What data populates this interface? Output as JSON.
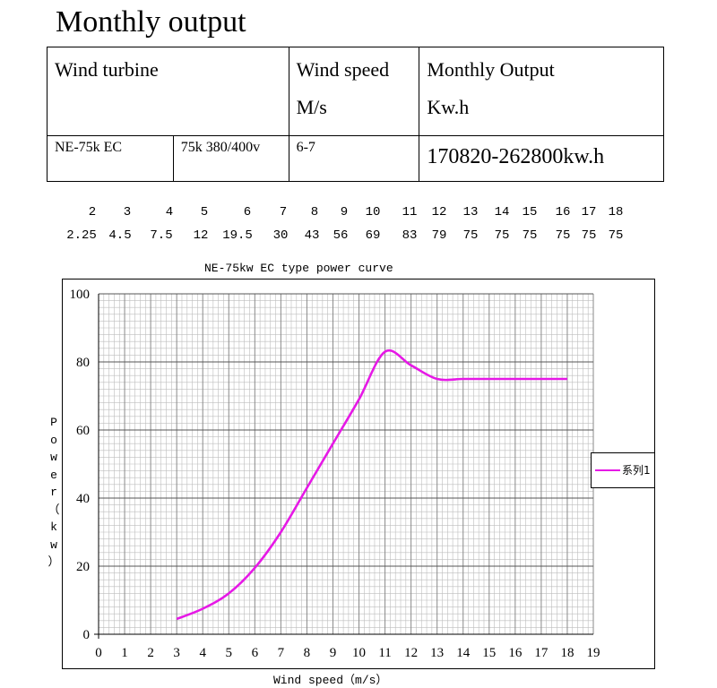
{
  "page": {
    "title": "Monthly output"
  },
  "spec_table": {
    "header_turbine": "Wind turbine",
    "header_speed": "Wind speed",
    "header_speed_unit": "M/s",
    "header_output": "Monthly Output",
    "header_output_unit": "Kw.h",
    "model": "NE-75k EC",
    "voltage": "75k 380/400v",
    "speed_range": "6-7",
    "output_range": "170820-262800kw.h"
  },
  "data_rows": {
    "wind_speeds": [
      "2",
      "3",
      "4",
      "5",
      "6",
      "7",
      "8",
      "9",
      "10",
      "11",
      "12",
      "13",
      "14",
      "15",
      "16",
      "17",
      "18"
    ],
    "powers": [
      "2.25",
      "4.5",
      "7.5",
      "12",
      "19.5",
      "30",
      "43",
      "56",
      "69",
      "83",
      "79",
      "75",
      "75",
      "75",
      "75",
      "75",
      "75"
    ]
  },
  "chart_data": {
    "type": "line",
    "title": "NE-75kw EC type power curve",
    "xlabel": "Wind speed（m/s）",
    "ylabel": "Power（kw）",
    "x": [
      3,
      4,
      5,
      6,
      7,
      8,
      9,
      10,
      11,
      12,
      13,
      14,
      15,
      16,
      17,
      18
    ],
    "series": [
      {
        "name": "系列1",
        "color": "#e619e6",
        "values": [
          4.5,
          7.5,
          12,
          19.5,
          30,
          43,
          56,
          69,
          83,
          79,
          75,
          75,
          75,
          75,
          75,
          75
        ]
      }
    ],
    "xlim": [
      0,
      19
    ],
    "ylim": [
      0,
      100
    ],
    "x_ticks": [
      0,
      1,
      2,
      3,
      4,
      5,
      6,
      7,
      8,
      9,
      10,
      11,
      12,
      13,
      14,
      15,
      16,
      17,
      18,
      19
    ],
    "y_ticks": [
      0,
      20,
      40,
      60,
      80,
      100
    ],
    "grid": true,
    "legend_position": "right"
  }
}
